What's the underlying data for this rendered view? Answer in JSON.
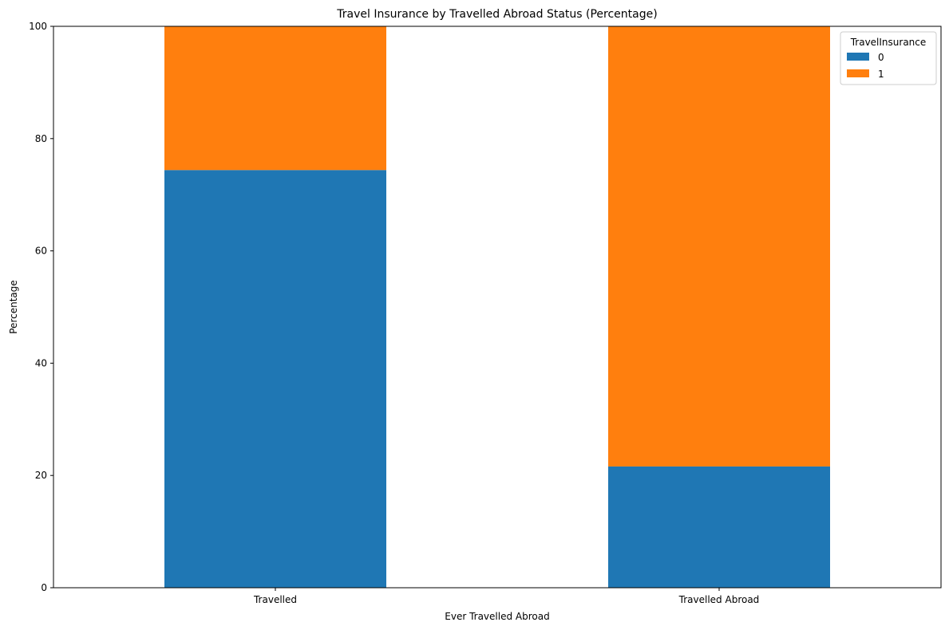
{
  "chart_data": {
    "type": "bar",
    "stacked": true,
    "title": "Travel Insurance by Travelled Abroad Status (Percentage)",
    "xlabel": "Ever Travelled Abroad",
    "ylabel": "Percentage",
    "categories": [
      "Travelled",
      "Travelled Abroad"
    ],
    "series": [
      {
        "name": "0",
        "values": [
          74.4,
          21.6
        ],
        "color": "#1f77b4"
      },
      {
        "name": "1",
        "values": [
          25.6,
          78.4
        ],
        "color": "#ff7f0e"
      }
    ],
    "ylim": [
      0,
      100
    ],
    "yticks": [
      0,
      20,
      40,
      60,
      80,
      100
    ],
    "grid": false,
    "legend": {
      "title": "TravelInsurance",
      "placement": "top-right"
    }
  }
}
